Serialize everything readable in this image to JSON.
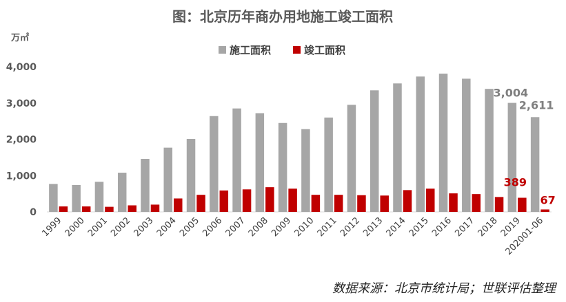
{
  "chart_data": {
    "type": "bar",
    "title": "图：北京历年商办用地施工竣工面积",
    "unit_label": "万㎡",
    "categories": [
      "1999",
      "2000",
      "2001",
      "2002",
      "2003",
      "2004",
      "2005",
      "2006",
      "2007",
      "2008",
      "2009",
      "2010",
      "2011",
      "2012",
      "2013",
      "2014",
      "2015",
      "2016",
      "2017",
      "2018",
      "2019",
      "202001-06"
    ],
    "series": [
      {
        "name": "施工面积",
        "color": "#a6a6a6",
        "values": [
          770,
          740,
          830,
          1080,
          1460,
          1770,
          2010,
          2640,
          2850,
          2720,
          2450,
          2280,
          2600,
          2950,
          3350,
          3540,
          3730,
          3810,
          3670,
          3390,
          3004,
          2611
        ]
      },
      {
        "name": "竣工面积",
        "color": "#c00000",
        "values": [
          150,
          150,
          140,
          180,
          200,
          370,
          470,
          590,
          620,
          680,
          640,
          470,
          470,
          460,
          450,
          600,
          640,
          510,
          490,
          410,
          389,
          67
        ]
      }
    ],
    "data_labels": [
      {
        "series": 0,
        "index": 20,
        "text": "3,004"
      },
      {
        "series": 0,
        "index": 21,
        "text": "2,611"
      },
      {
        "series": 1,
        "index": 20,
        "text": "389"
      },
      {
        "series": 1,
        "index": 21,
        "text": "67"
      }
    ],
    "ylim": [
      0,
      4000
    ],
    "yticks": [
      0,
      1000,
      2000,
      3000,
      4000
    ],
    "ytick_labels": [
      "0",
      "1,000",
      "2,000",
      "3,000",
      "4,000"
    ],
    "grid": false,
    "legend_position": "top-center"
  },
  "source_note": "数据来源：北京市统计局；世联评估整理"
}
